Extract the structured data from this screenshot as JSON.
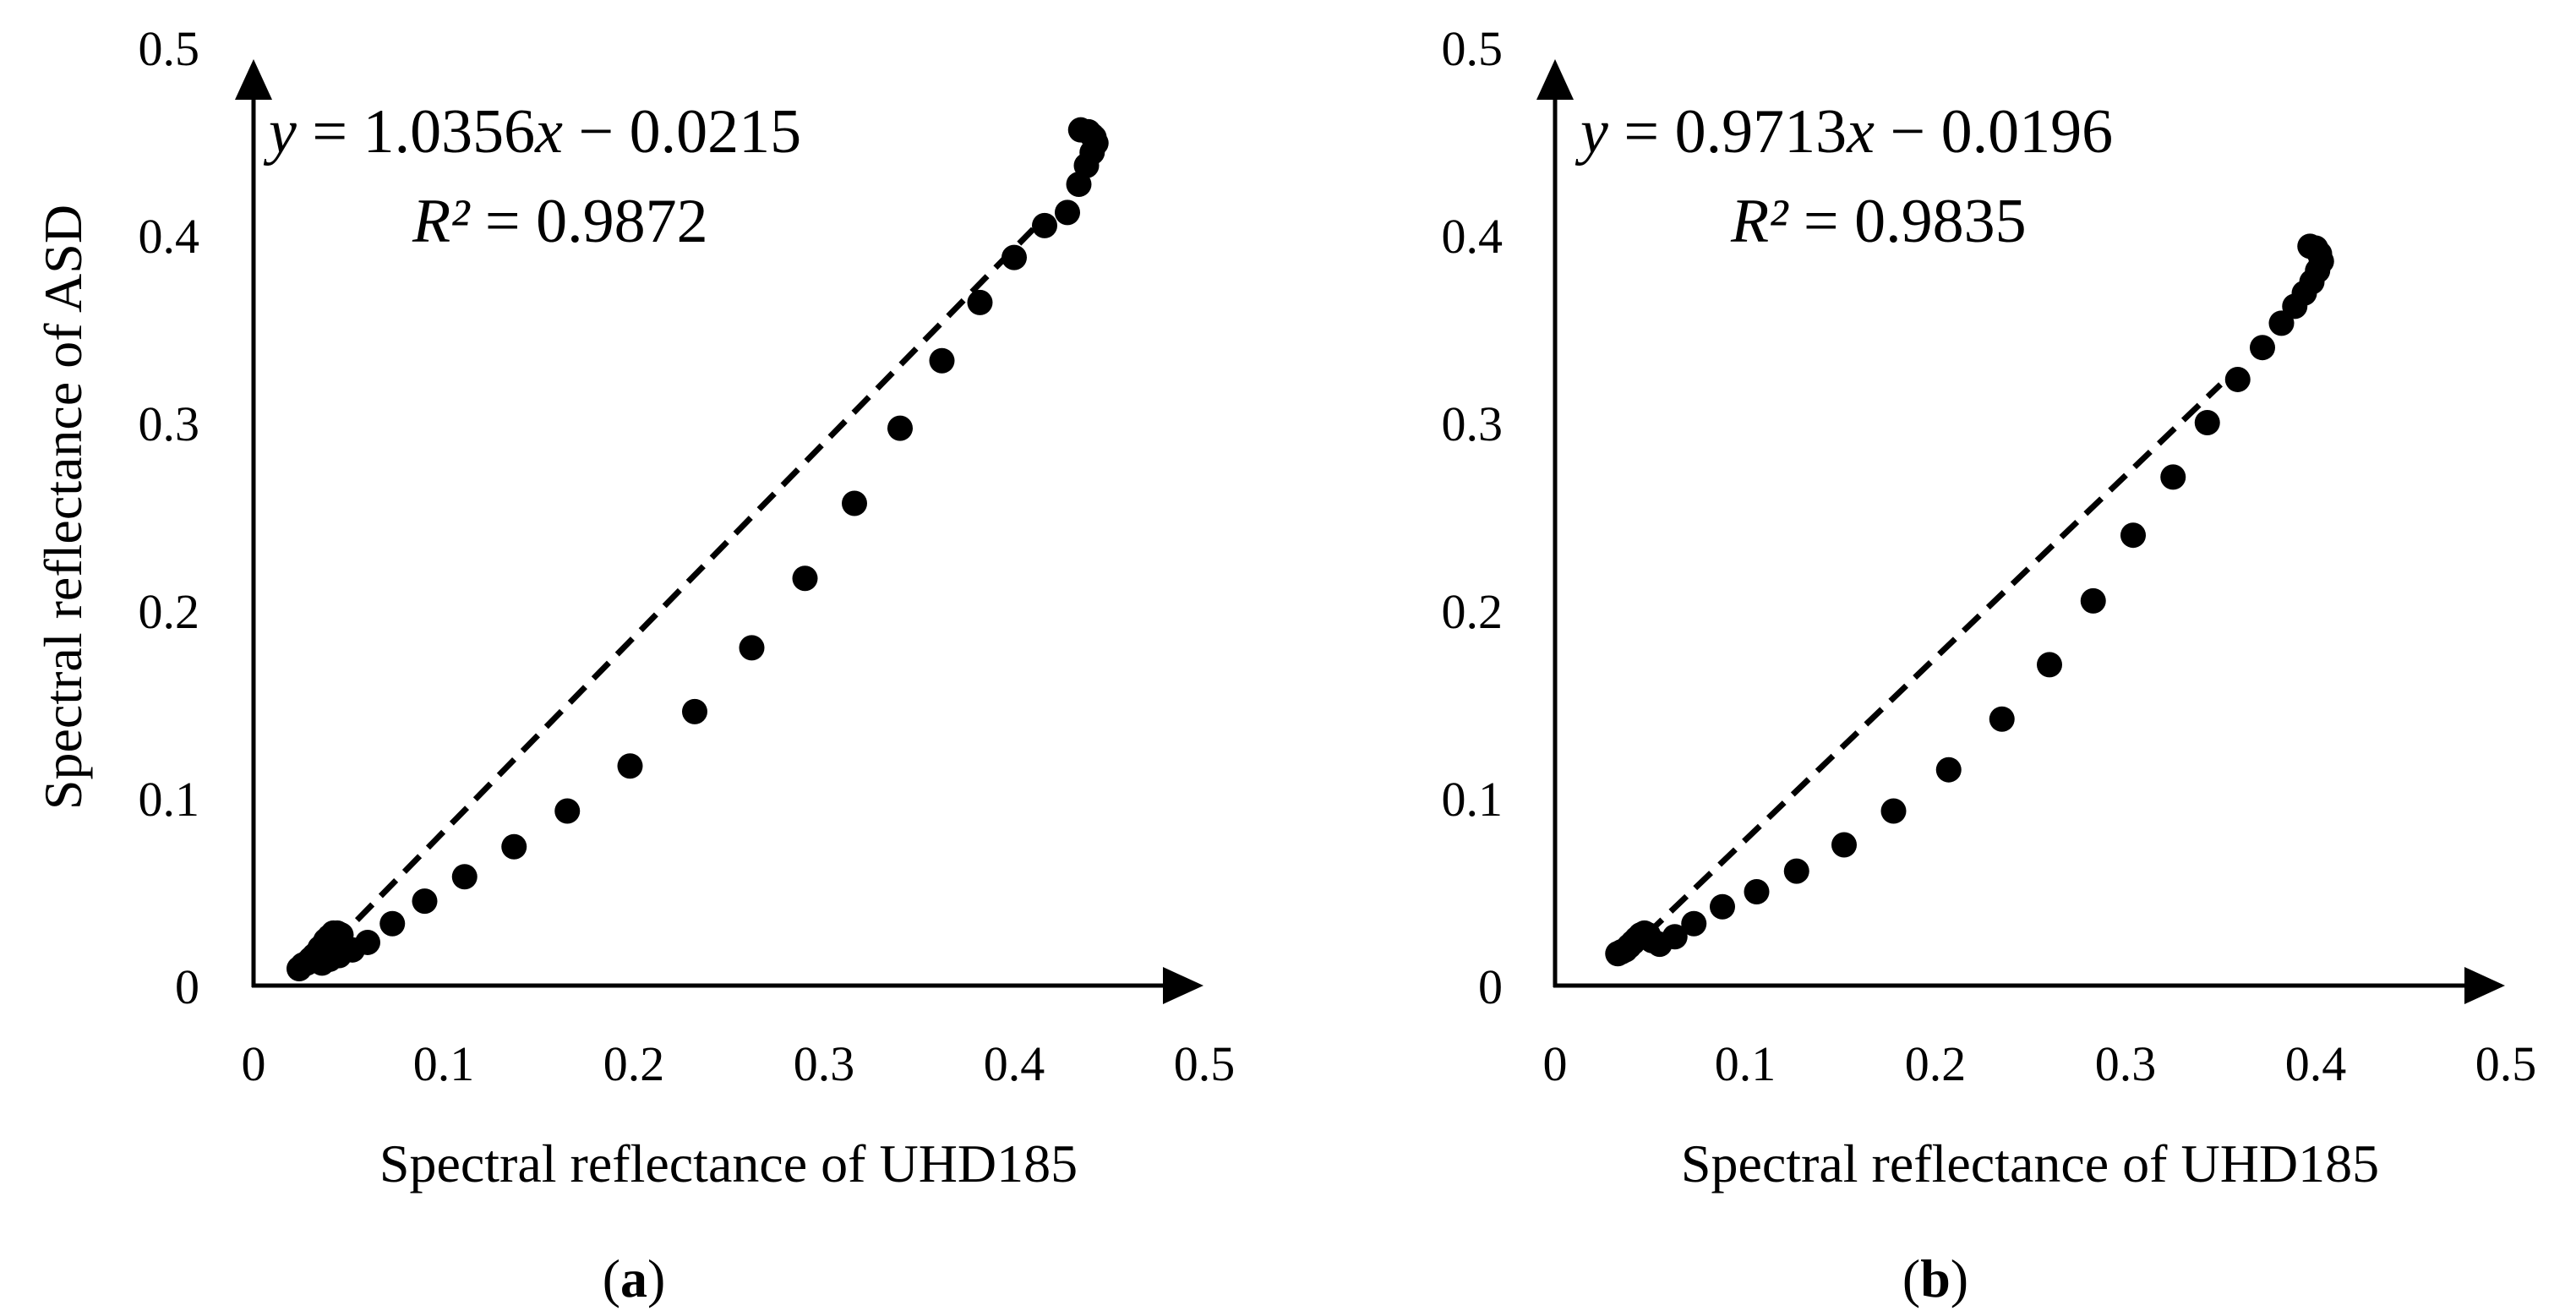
{
  "figure": {
    "panel_labels": [
      {
        "open": "(",
        "letter": "a",
        "close": ")"
      },
      {
        "open": "(",
        "letter": "b",
        "close": ")"
      }
    ]
  },
  "chart_data": [
    {
      "type": "scatter",
      "panel": "(a)",
      "xlabel": "Spectral reflectance of UHD185",
      "ylabel": "Spectral reflectance of ASD",
      "xlim": [
        0,
        0.5
      ],
      "ylim": [
        0,
        0.5
      ],
      "x_ticks": [
        "0",
        "0.1",
        "0.2",
        "0.3",
        "0.4",
        "0.5"
      ],
      "y_ticks": [
        "0",
        "0.1",
        "0.2",
        "0.3",
        "0.4",
        "0.5"
      ],
      "grid": false,
      "marker_color": "#000000",
      "equation": {
        "y": "y",
        "eq": " = 1.0356",
        "x": "x",
        "rest": " − 0.0215"
      },
      "r_squared": {
        "r": "R²",
        "value": " = 0.9872"
      },
      "trendline": {
        "slope": 1.0356,
        "intercept": -0.0215,
        "x_range": [
          0.042,
          0.41
        ],
        "style": "dashed"
      },
      "points": [
        [
          0.024,
          0.009
        ],
        [
          0.026,
          0.011
        ],
        [
          0.028,
          0.012
        ],
        [
          0.03,
          0.014
        ],
        [
          0.032,
          0.016
        ],
        [
          0.034,
          0.018
        ],
        [
          0.035,
          0.02
        ],
        [
          0.037,
          0.022
        ],
        [
          0.038,
          0.024
        ],
        [
          0.04,
          0.026
        ],
        [
          0.042,
          0.028
        ],
        [
          0.044,
          0.028
        ],
        [
          0.046,
          0.027
        ],
        [
          0.036,
          0.012
        ],
        [
          0.04,
          0.014
        ],
        [
          0.045,
          0.016
        ],
        [
          0.052,
          0.019
        ],
        [
          0.06,
          0.023
        ],
        [
          0.073,
          0.033
        ],
        [
          0.09,
          0.045
        ],
        [
          0.111,
          0.058
        ],
        [
          0.137,
          0.074
        ],
        [
          0.165,
          0.093
        ],
        [
          0.198,
          0.117
        ],
        [
          0.232,
          0.146
        ],
        [
          0.262,
          0.18
        ],
        [
          0.29,
          0.217
        ],
        [
          0.316,
          0.257
        ],
        [
          0.34,
          0.297
        ],
        [
          0.362,
          0.333
        ],
        [
          0.382,
          0.364
        ],
        [
          0.4,
          0.388
        ],
        [
          0.416,
          0.405
        ],
        [
          0.428,
          0.412
        ],
        [
          0.434,
          0.427
        ],
        [
          0.438,
          0.437
        ],
        [
          0.441,
          0.444
        ],
        [
          0.443,
          0.449
        ],
        [
          0.442,
          0.452
        ],
        [
          0.439,
          0.455
        ],
        [
          0.435,
          0.456
        ],
        [
          0.441,
          0.453
        ]
      ]
    },
    {
      "type": "scatter",
      "panel": "(b)",
      "xlabel": "Spectral reflectance of UHD185",
      "ylabel": "",
      "xlim": [
        0,
        0.5
      ],
      "ylim": [
        0,
        0.5
      ],
      "x_ticks": [
        "0",
        "0.1",
        "0.2",
        "0.3",
        "0.4",
        "0.5"
      ],
      "y_ticks": [
        "0",
        "0.1",
        "0.2",
        "0.3",
        "0.4",
        "0.5"
      ],
      "grid": false,
      "marker_color": "#000000",
      "equation": {
        "y": "y",
        "eq": " = 0.9713",
        "x": "x",
        "rest": " − 0.0196"
      },
      "r_squared": {
        "r": "R²",
        "value": " = 0.9835"
      },
      "trendline": {
        "slope": 0.9713,
        "intercept": -0.0196,
        "x_range": [
          0.048,
          0.35
        ],
        "style": "dashed"
      },
      "points": [
        [
          0.033,
          0.017
        ],
        [
          0.035,
          0.018
        ],
        [
          0.037,
          0.019
        ],
        [
          0.039,
          0.021
        ],
        [
          0.041,
          0.023
        ],
        [
          0.043,
          0.025
        ],
        [
          0.045,
          0.027
        ],
        [
          0.047,
          0.028
        ],
        [
          0.049,
          0.027
        ],
        [
          0.051,
          0.024
        ],
        [
          0.055,
          0.022
        ],
        [
          0.063,
          0.026
        ],
        [
          0.073,
          0.033
        ],
        [
          0.088,
          0.042
        ],
        [
          0.106,
          0.05
        ],
        [
          0.127,
          0.061
        ],
        [
          0.152,
          0.075
        ],
        [
          0.178,
          0.093
        ],
        [
          0.207,
          0.115
        ],
        [
          0.235,
          0.142
        ],
        [
          0.26,
          0.171
        ],
        [
          0.283,
          0.205
        ],
        [
          0.304,
          0.24
        ],
        [
          0.325,
          0.271
        ],
        [
          0.343,
          0.3
        ],
        [
          0.359,
          0.323
        ],
        [
          0.372,
          0.34
        ],
        [
          0.382,
          0.353
        ],
        [
          0.389,
          0.362
        ],
        [
          0.394,
          0.369
        ],
        [
          0.398,
          0.375
        ],
        [
          0.401,
          0.381
        ],
        [
          0.403,
          0.386
        ],
        [
          0.402,
          0.39
        ],
        [
          0.4,
          0.393
        ],
        [
          0.397,
          0.394
        ]
      ]
    }
  ]
}
